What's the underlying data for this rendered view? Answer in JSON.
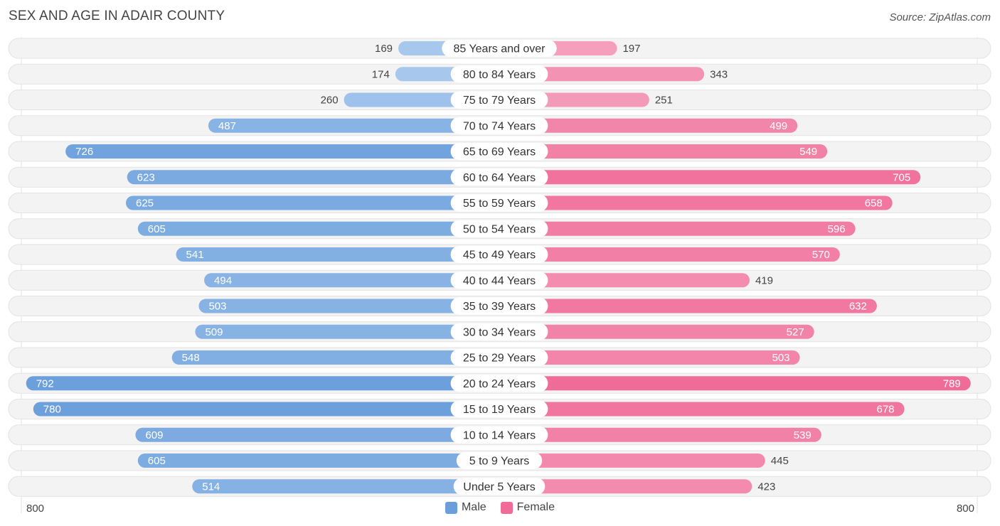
{
  "title": "SEX AND AGE IN ADAIR COUNTY",
  "source": "Source: ZipAtlas.com",
  "colors": {
    "male": "#6a9fdc",
    "female": "#f06b97",
    "male_light": "#a9c9ee",
    "female_light": "#f5a3bf"
  },
  "legend": {
    "male": "Male",
    "female": "Female"
  },
  "axis": {
    "left_label": "800",
    "right_label": "800"
  },
  "chart_data": {
    "type": "bar",
    "orientation": "horizontal-diverging",
    "categories": [
      "85 Years and over",
      "80 to 84 Years",
      "75 to 79 Years",
      "70 to 74 Years",
      "65 to 69 Years",
      "60 to 64 Years",
      "55 to 59 Years",
      "50 to 54 Years",
      "45 to 49 Years",
      "40 to 44 Years",
      "35 to 39 Years",
      "30 to 34 Years",
      "25 to 29 Years",
      "20 to 24 Years",
      "15 to 19 Years",
      "10 to 14 Years",
      "5 to 9 Years",
      "Under 5 Years"
    ],
    "series": [
      {
        "name": "Male",
        "values": [
          169,
          174,
          260,
          487,
          726,
          623,
          625,
          605,
          541,
          494,
          503,
          509,
          548,
          792,
          780,
          609,
          605,
          514
        ]
      },
      {
        "name": "Female",
        "values": [
          197,
          343,
          251,
          499,
          549,
          705,
          658,
          596,
          570,
          419,
          632,
          527,
          503,
          789,
          678,
          539,
          445,
          423
        ]
      }
    ],
    "xlim": [
      -800,
      800
    ],
    "legend_position": "bottom-center"
  }
}
